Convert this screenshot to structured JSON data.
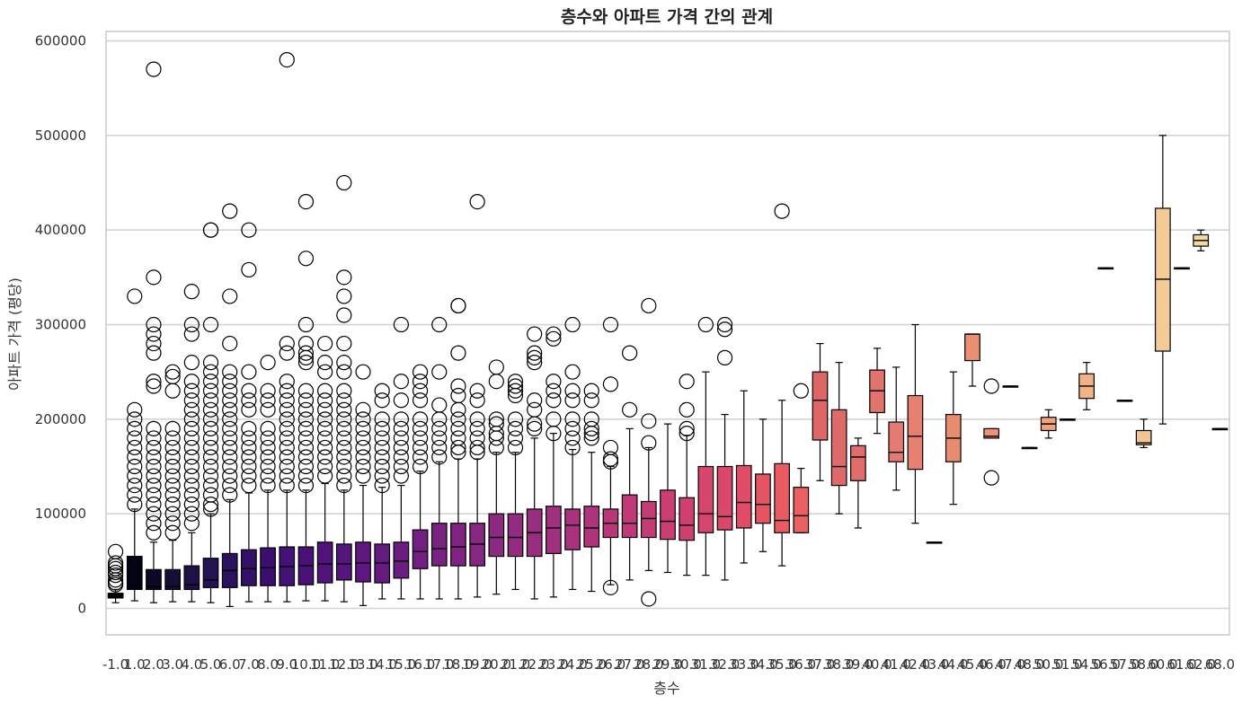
{
  "chart_data": {
    "type": "box",
    "title": "층수와 아파트 가격 간의 관계",
    "xlabel": "층수",
    "ylabel": "아파트 가격 (평당)",
    "ylim": [
      -28000,
      610000
    ],
    "yticks": [
      0,
      100000,
      200000,
      300000,
      400000,
      500000,
      600000
    ],
    "ytick_labels": [
      "0",
      "100000",
      "200000",
      "300000",
      "400000",
      "500000",
      "600000"
    ],
    "grid": "horizontal",
    "palette": "magma",
    "categories": [
      "-1.0",
      "1.0",
      "2.0",
      "3.0",
      "4.0",
      "5.0",
      "6.0",
      "7.0",
      "8.0",
      "9.0",
      "10.0",
      "11.0",
      "12.0",
      "13.0",
      "14.0",
      "15.0",
      "16.0",
      "17.0",
      "18.0",
      "19.0",
      "20.0",
      "21.0",
      "22.0",
      "23.0",
      "24.0",
      "25.0",
      "26.0",
      "27.0",
      "28.0",
      "29.0",
      "30.0",
      "31.0",
      "32.0",
      "33.0",
      "34.0",
      "35.0",
      "36.0",
      "37.0",
      "38.0",
      "39.0",
      "40.0",
      "41.0",
      "42.0",
      "43.0",
      "44.0",
      "45.0",
      "46.0",
      "47.0",
      "48.0",
      "50.0",
      "51.0",
      "54.0",
      "56.0",
      "57.0",
      "58.0",
      "60.0",
      "61.0",
      "62.0",
      "68.0"
    ],
    "boxes": [
      {
        "q1": 11000,
        "median": 13000,
        "q3": 16000,
        "whislo": 6000,
        "whishi": 20000,
        "outliers": [
          60000,
          48000,
          45000,
          42000,
          38000,
          35000,
          30000,
          27000,
          25000
        ],
        "color": "#000004"
      },
      {
        "q1": 20000,
        "median": 25000,
        "q3": 55000,
        "whislo": 8000,
        "whishi": 105000,
        "outliers": [
          330000,
          210000,
          200000,
          190000,
          180000,
          170000,
          160000,
          150000,
          140000,
          130000,
          120000,
          110000
        ],
        "color": "#040314"
      },
      {
        "q1": 20000,
        "median": 23000,
        "q3": 41000,
        "whislo": 6000,
        "whishi": 70000,
        "outliers": [
          570000,
          350000,
          300000,
          290000,
          280000,
          270000,
          240000,
          235000,
          190000,
          180000,
          170000,
          160000,
          150000,
          140000,
          130000,
          120000,
          110000,
          100000,
          90000,
          80000
        ],
        "color": "#0c0926"
      },
      {
        "q1": 20000,
        "median": 23000,
        "q3": 41000,
        "whislo": 7000,
        "whishi": 72000,
        "outliers": [
          250000,
          245000,
          230000,
          190000,
          180000,
          170000,
          160000,
          150000,
          140000,
          130000,
          120000,
          110000,
          100000,
          90000,
          80000
        ],
        "color": "#150e37"
      },
      {
        "q1": 20000,
        "median": 25000,
        "q3": 45000,
        "whislo": 7000,
        "whishi": 80000,
        "outliers": [
          335000,
          300000,
          290000,
          260000,
          240000,
          230000,
          220000,
          210000,
          200000,
          190000,
          180000,
          170000,
          160000,
          150000,
          140000,
          130000,
          120000,
          110000,
          100000,
          90000
        ],
        "color": "#1d1147"
      },
      {
        "q1": 22000,
        "median": 30000,
        "q3": 53000,
        "whislo": 6000,
        "whishi": 100000,
        "outliers": [
          400000,
          400000,
          300000,
          260000,
          250000,
          240000,
          230000,
          220000,
          210000,
          200000,
          190000,
          180000,
          170000,
          160000,
          150000,
          140000,
          130000,
          120000,
          110000,
          105000
        ],
        "color": "#251255"
      },
      {
        "q1": 22000,
        "median": 40000,
        "q3": 58000,
        "whislo": 2000,
        "whishi": 115000,
        "outliers": [
          420000,
          330000,
          280000,
          250000,
          240000,
          230000,
          220000,
          210000,
          200000,
          190000,
          180000,
          170000,
          160000,
          150000,
          140000,
          130000,
          120000
        ],
        "color": "#2c115f"
      },
      {
        "q1": 24000,
        "median": 42000,
        "q3": 62000,
        "whislo": 7000,
        "whishi": 122000,
        "outliers": [
          400000,
          358000,
          250000,
          230000,
          220000,
          210000,
          190000,
          180000,
          170000,
          160000,
          150000,
          140000,
          130000
        ],
        "color": "#341068"
      },
      {
        "q1": 24000,
        "median": 43000,
        "q3": 64000,
        "whislo": 7000,
        "whishi": 125000,
        "outliers": [
          260000,
          230000,
          220000,
          210000,
          190000,
          180000,
          170000,
          160000,
          150000,
          140000,
          130000
        ],
        "color": "#3b0f70"
      },
      {
        "q1": 24000,
        "median": 44000,
        "q3": 65000,
        "whislo": 7000,
        "whishi": 125000,
        "outliers": [
          580000,
          280000,
          270000,
          240000,
          230000,
          220000,
          210000,
          200000,
          190000,
          180000,
          170000,
          160000,
          150000,
          140000,
          130000
        ],
        "color": "#421274"
      },
      {
        "q1": 25000,
        "median": 45000,
        "q3": 65000,
        "whislo": 8000,
        "whishi": 125000,
        "outliers": [
          430000,
          370000,
          300000,
          280000,
          270000,
          265000,
          260000,
          230000,
          220000,
          210000,
          200000,
          190000,
          180000,
          170000,
          160000,
          150000,
          140000,
          130000
        ],
        "color": "#491078"
      },
      {
        "q1": 27000,
        "median": 47000,
        "q3": 70000,
        "whislo": 8000,
        "whishi": 132000,
        "outliers": [
          280000,
          260000,
          250000,
          230000,
          220000,
          210000,
          200000,
          190000,
          180000,
          170000,
          160000,
          150000,
          140000
        ],
        "color": "#51127c"
      },
      {
        "q1": 30000,
        "median": 47000,
        "q3": 68000,
        "whislo": 7000,
        "whishi": 125000,
        "outliers": [
          450000,
          350000,
          330000,
          310000,
          280000,
          260000,
          250000,
          230000,
          220000,
          210000,
          200000,
          190000,
          180000,
          170000,
          160000,
          150000,
          140000,
          130000
        ],
        "color": "#57157e"
      },
      {
        "q1": 28000,
        "median": 48000,
        "q3": 70000,
        "whislo": 3000,
        "whishi": 130000,
        "outliers": [
          250000,
          210000,
          200000,
          190000,
          180000,
          170000,
          160000,
          150000,
          140000
        ],
        "color": "#5f187f"
      },
      {
        "q1": 27000,
        "median": 48000,
        "q3": 68000,
        "whislo": 10000,
        "whishi": 128000,
        "outliers": [
          230000,
          220000,
          200000,
          190000,
          180000,
          170000,
          160000,
          150000,
          140000,
          130000
        ],
        "color": "#651a80"
      },
      {
        "q1": 32000,
        "median": 50000,
        "q3": 70000,
        "whislo": 10000,
        "whishi": 130000,
        "outliers": [
          300000,
          240000,
          220000,
          200000,
          190000,
          180000,
          170000,
          160000,
          150000,
          140000
        ],
        "color": "#6c1d81"
      },
      {
        "q1": 42000,
        "median": 60000,
        "q3": 83000,
        "whislo": 10000,
        "whishi": 145000,
        "outliers": [
          250000,
          240000,
          230000,
          220000,
          200000,
          190000,
          180000,
          170000,
          160000,
          150000
        ],
        "color": "#721f81"
      },
      {
        "q1": 45000,
        "median": 63000,
        "q3": 90000,
        "whislo": 10000,
        "whishi": 155000,
        "outliers": [
          300000,
          250000,
          215000,
          200000,
          190000,
          180000,
          170000,
          160000
        ],
        "color": "#792282"
      },
      {
        "q1": 45000,
        "median": 65000,
        "q3": 90000,
        "whislo": 10000,
        "whishi": 158000,
        "outliers": [
          320000,
          320000,
          270000,
          235000,
          225000,
          210000,
          200000,
          190000,
          180000,
          170000,
          165000
        ],
        "color": "#7f2482"
      },
      {
        "q1": 45000,
        "median": 68000,
        "q3": 90000,
        "whislo": 12000,
        "whishi": 158000,
        "outliers": [
          430000,
          230000,
          220000,
          200000,
          190000,
          180000,
          170000,
          165000
        ],
        "color": "#862781"
      },
      {
        "q1": 55000,
        "median": 75000,
        "q3": 100000,
        "whislo": 15000,
        "whishi": 165000,
        "outliers": [
          255000,
          240000,
          200000,
          195000,
          185000,
          180000,
          170000
        ],
        "color": "#8c2981"
      },
      {
        "q1": 55000,
        "median": 75000,
        "q3": 100000,
        "whislo": 20000,
        "whishi": 165000,
        "outliers": [
          240000,
          235000,
          230000,
          225000,
          200000,
          190000,
          180000,
          170000
        ],
        "color": "#932b80"
      },
      {
        "q1": 55000,
        "median": 80000,
        "q3": 105000,
        "whislo": 10000,
        "whishi": 180000,
        "outliers": [
          290000,
          270000,
          265000,
          260000,
          220000,
          210000,
          195000,
          190000
        ],
        "color": "#992d80"
      },
      {
        "q1": 58000,
        "median": 85000,
        "q3": 108000,
        "whislo": 12000,
        "whishi": 185000,
        "outliers": [
          290000,
          285000,
          240000,
          230000,
          220000,
          200000,
          185000
        ],
        "color": "#a1307e"
      },
      {
        "q1": 62000,
        "median": 88000,
        "q3": 105000,
        "whislo": 20000,
        "whishi": 168000,
        "outliers": [
          300000,
          250000,
          230000,
          220000,
          200000,
          190000,
          180000,
          170000
        ],
        "color": "#a8327d"
      },
      {
        "q1": 65000,
        "median": 85000,
        "q3": 108000,
        "whislo": 18000,
        "whishi": 165000,
        "outliers": [
          230000,
          220000,
          200000,
          190000,
          185000,
          180000
        ],
        "color": "#ae347b"
      },
      {
        "q1": 75000,
        "median": 90000,
        "q3": 105000,
        "whislo": 25000,
        "whishi": 150000,
        "outliers": [
          300000,
          237000,
          170000,
          158000,
          155000,
          22000
        ],
        "color": "#b73779"
      },
      {
        "q1": 75000,
        "median": 90000,
        "q3": 120000,
        "whislo": 30000,
        "whishi": 190000,
        "outliers": [
          270000,
          210000
        ],
        "color": "#bd3977"
      },
      {
        "q1": 75000,
        "median": 95000,
        "q3": 113000,
        "whislo": 40000,
        "whishi": 170000,
        "outliers": [
          320000,
          198000,
          175000,
          10000
        ],
        "color": "#c43c75"
      },
      {
        "q1": 73000,
        "median": 92000,
        "q3": 125000,
        "whislo": 38000,
        "whishi": 195000,
        "outliers": [],
        "color": "#ca3e72"
      },
      {
        "q1": 72000,
        "median": 88000,
        "q3": 117000,
        "whislo": 35000,
        "whishi": 183000,
        "outliers": [
          240000,
          210000,
          190000,
          185000
        ],
        "color": "#cf4070"
      },
      {
        "q1": 80000,
        "median": 100000,
        "q3": 150000,
        "whislo": 35000,
        "whishi": 250000,
        "outliers": [
          300000
        ],
        "color": "#d6456c"
      },
      {
        "q1": 83000,
        "median": 97000,
        "q3": 150000,
        "whislo": 30000,
        "whishi": 205000,
        "outliers": [
          300000,
          295000,
          265000
        ],
        "color": "#db476a"
      },
      {
        "q1": 85000,
        "median": 112000,
        "q3": 151000,
        "whislo": 48000,
        "whishi": 230000,
        "outliers": [],
        "color": "#e04c67"
      },
      {
        "q1": 90000,
        "median": 110000,
        "q3": 142000,
        "whislo": 60000,
        "whishi": 200000,
        "outliers": [],
        "color": "#e45563"
      },
      {
        "q1": 80000,
        "median": 93000,
        "q3": 153000,
        "whislo": 45000,
        "whishi": 220000,
        "outliers": [
          420000
        ],
        "color": "#e85b62"
      },
      {
        "q1": 80000,
        "median": 98000,
        "q3": 128000,
        "whislo": 80000,
        "whishi": 148000,
        "outliers": [
          230000
        ],
        "color": "#eb5f61"
      },
      {
        "q1": 178000,
        "median": 220000,
        "q3": 250000,
        "whislo": 135000,
        "whishi": 280000,
        "outliers": [],
        "color": "#dd6767"
      },
      {
        "q1": 130000,
        "median": 150000,
        "q3": 210000,
        "whislo": 100000,
        "whishi": 260000,
        "outliers": [],
        "color": "#de6a69"
      },
      {
        "q1": 135000,
        "median": 160000,
        "q3": 172000,
        "whislo": 85000,
        "whishi": 180000,
        "outliers": [],
        "color": "#e06d6b"
      },
      {
        "q1": 207000,
        "median": 230000,
        "q3": 252000,
        "whislo": 185000,
        "whishi": 275000,
        "outliers": [],
        "color": "#e1726e"
      },
      {
        "q1": 155000,
        "median": 165000,
        "q3": 197000,
        "whislo": 125000,
        "whishi": 255000,
        "outliers": [],
        "color": "#e47a72"
      },
      {
        "q1": 147000,
        "median": 182000,
        "q3": 225000,
        "whislo": 90000,
        "whishi": 300000,
        "outliers": [],
        "color": "#e6806f"
      },
      {
        "q1": 70000,
        "median": 70000,
        "q3": 70000,
        "whislo": 70000,
        "whishi": 70000,
        "outliers": [],
        "color": "#e7826d"
      },
      {
        "q1": 155000,
        "median": 180000,
        "q3": 205000,
        "whislo": 110000,
        "whishi": 250000,
        "outliers": [],
        "color": "#e88c6f"
      },
      {
        "q1": 262000,
        "median": 290000,
        "q3": 290000,
        "whislo": 235000,
        "whishi": 290000,
        "outliers": [],
        "color": "#ea8f71"
      },
      {
        "q1": 180000,
        "median": 182000,
        "q3": 190000,
        "whislo": 180000,
        "whishi": 190000,
        "outliers": [
          235000,
          138000
        ],
        "color": "#ec9473"
      },
      {
        "q1": 235000,
        "median": 235000,
        "q3": 235000,
        "whislo": 235000,
        "whishi": 235000,
        "outliers": [],
        "color": "#ee9a76"
      },
      {
        "q1": 170000,
        "median": 170000,
        "q3": 170000,
        "whislo": 170000,
        "whishi": 170000,
        "outliers": [],
        "color": "#efa07a"
      },
      {
        "q1": 188000,
        "median": 195000,
        "q3": 202000,
        "whislo": 180000,
        "whishi": 210000,
        "outliers": [],
        "color": "#f0a47c"
      },
      {
        "q1": 200000,
        "median": 200000,
        "q3": 200000,
        "whislo": 200000,
        "whishi": 200000,
        "outliers": [],
        "color": "#f1aa80"
      },
      {
        "q1": 222000,
        "median": 235000,
        "q3": 248000,
        "whislo": 210000,
        "whishi": 260000,
        "outliers": [],
        "color": "#f2b186"
      },
      {
        "q1": 360000,
        "median": 360000,
        "q3": 360000,
        "whislo": 360000,
        "whishi": 360000,
        "outliers": [],
        "color": "#f3b78b"
      },
      {
        "q1": 220000,
        "median": 220000,
        "q3": 220000,
        "whislo": 220000,
        "whishi": 220000,
        "outliers": [],
        "color": "#f4bd8f"
      },
      {
        "q1": 173000,
        "median": 175000,
        "q3": 188000,
        "whislo": 170000,
        "whishi": 200000,
        "outliers": [],
        "color": "#f4c493"
      },
      {
        "q1": 272000,
        "median": 348000,
        "q3": 423000,
        "whislo": 195000,
        "whishi": 500000,
        "outliers": [],
        "color": "#f3cb97"
      },
      {
        "q1": 360000,
        "median": 360000,
        "q3": 360000,
        "whislo": 360000,
        "whishi": 360000,
        "outliers": [],
        "color": "#f3d19c"
      },
      {
        "q1": 383000,
        "median": 389000,
        "q3": 395000,
        "whislo": 378000,
        "whishi": 400000,
        "outliers": [],
        "color": "#f4d8a2"
      },
      {
        "q1": 190000,
        "median": 190000,
        "q3": 190000,
        "whislo": 190000,
        "whishi": 190000,
        "outliers": [],
        "color": "#f6dea8"
      }
    ]
  }
}
